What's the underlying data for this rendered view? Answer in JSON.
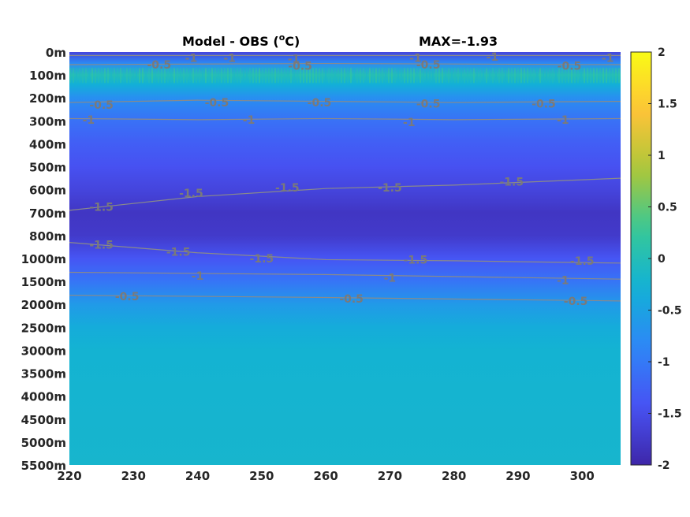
{
  "chart_data": {
    "type": "heatmap",
    "title_left": "Model - OBS (",
    "title_unit_sup": "o",
    "title_unit": "C)",
    "title_right": "MAX=-1.93",
    "x_ticks": [
      220,
      230,
      240,
      250,
      260,
      270,
      280,
      290,
      300
    ],
    "xlim": [
      220,
      306
    ],
    "y_ticks": [
      "0m",
      "100m",
      "200m",
      "300m",
      "400m",
      "500m",
      "600m",
      "700m",
      "800m",
      "1000m",
      "1500m",
      "2000m",
      "2500m",
      "3000m",
      "3500m",
      "4000m",
      "4500m",
      "5000m",
      "5500m"
    ],
    "colorbar_ticks": [
      "2",
      "1.5",
      "1",
      "0.5",
      "0",
      "-0.5",
      "-1",
      "-1.5",
      "-2"
    ],
    "clim": [
      -2,
      2
    ],
    "colormap": "parula",
    "depth_profile": [
      {
        "level": 0,
        "value": -1.6
      },
      {
        "level": 0.5,
        "value": -0.8
      },
      {
        "level": 1,
        "value": 0.0
      },
      {
        "level": 1.4,
        "value": -0.3
      },
      {
        "level": 2,
        "value": -0.75
      },
      {
        "level": 3,
        "value": -1.1
      },
      {
        "level": 4,
        "value": -1.3
      },
      {
        "level": 5,
        "value": -1.45
      },
      {
        "level": 6,
        "value": -1.6
      },
      {
        "level": 7,
        "value": -1.8
      },
      {
        "level": 8,
        "value": -1.75
      },
      {
        "level": 9,
        "value": -1.4
      },
      {
        "level": 10,
        "value": -1.05
      },
      {
        "level": 11,
        "value": -0.6
      },
      {
        "level": 12,
        "value": -0.35
      },
      {
        "level": 13,
        "value": -0.25
      },
      {
        "level": 18,
        "value": -0.2
      }
    ],
    "contours": [
      {
        "level": "-1.5",
        "points": [
          [
            220,
            6.9
          ],
          [
            240,
            6.3
          ],
          [
            260,
            5.95
          ],
          [
            280,
            5.8
          ],
          [
            306,
            5.5
          ]
        ],
        "labels": [
          [
            225,
            6.75
          ],
          [
            239,
            6.15
          ],
          [
            254,
            5.9
          ],
          [
            270,
            5.9
          ],
          [
            289,
            5.65
          ]
        ]
      },
      {
        "level": "-1.5",
        "points": [
          [
            220,
            8.3
          ],
          [
            240,
            8.75
          ],
          [
            260,
            9.05
          ],
          [
            280,
            9.1
          ],
          [
            306,
            9.2
          ]
        ],
        "labels": [
          [
            225,
            8.4
          ],
          [
            237,
            8.7
          ],
          [
            250,
            9.0
          ],
          [
            274,
            9.05
          ],
          [
            300,
            9.1
          ]
        ]
      },
      {
        "level": "-1",
        "points": [
          [
            220,
            2.9
          ],
          [
            240,
            2.95
          ],
          [
            260,
            2.9
          ],
          [
            280,
            2.95
          ],
          [
            306,
            2.9
          ]
        ],
        "labels": [
          [
            223,
            2.95
          ],
          [
            248,
            2.95
          ],
          [
            273,
            3.05
          ],
          [
            297,
            2.95
          ]
        ]
      },
      {
        "level": "-1",
        "points": [
          [
            220,
            9.6
          ],
          [
            260,
            9.7
          ],
          [
            306,
            9.9
          ]
        ],
        "labels": [
          [
            240,
            9.75
          ],
          [
            270,
            9.85
          ],
          [
            297,
            9.95
          ]
        ]
      },
      {
        "level": "-0.5",
        "points": [
          [
            220,
            2.2
          ],
          [
            240,
            2.1
          ],
          [
            260,
            2.15
          ],
          [
            280,
            2.2
          ],
          [
            306,
            2.15
          ]
        ],
        "labels": [
          [
            225,
            2.3
          ],
          [
            243,
            2.2
          ],
          [
            259,
            2.2
          ],
          [
            276,
            2.25
          ],
          [
            294,
            2.25
          ]
        ]
      },
      {
        "level": "-0.5",
        "points": [
          [
            220,
            10.6
          ],
          [
            260,
            10.7
          ],
          [
            306,
            10.85
          ]
        ],
        "labels": [
          [
            229,
            10.65
          ],
          [
            264,
            10.75
          ],
          [
            299,
            10.85
          ]
        ]
      },
      {
        "level": "-0.5",
        "points": [
          [
            220,
            0.55
          ],
          [
            260,
            0.5
          ],
          [
            306,
            0.55
          ]
        ],
        "labels": [
          [
            234,
            0.55
          ],
          [
            256,
            0.6
          ],
          [
            276,
            0.55
          ],
          [
            298,
            0.6
          ]
        ]
      },
      {
        "level": "-1",
        "points": [
          [
            220,
            0.15
          ],
          [
            306,
            0.15
          ]
        ],
        "labels": [
          [
            239,
            0.25
          ],
          [
            245,
            0.25
          ],
          [
            255,
            0.3
          ],
          [
            274,
            0.25
          ],
          [
            286,
            0.2
          ],
          [
            304,
            0.25
          ]
        ]
      }
    ]
  }
}
